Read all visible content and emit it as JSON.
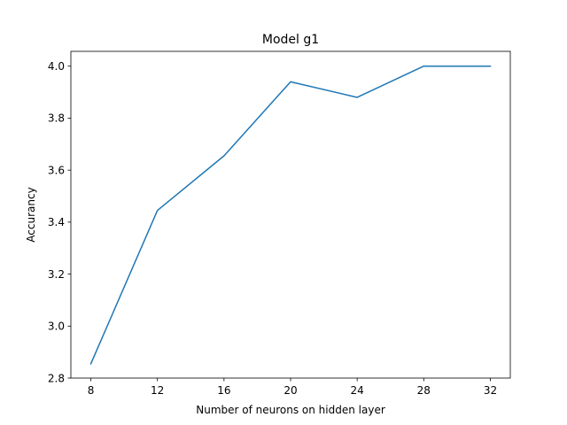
{
  "chart_data": {
    "type": "line",
    "title": "Model g1",
    "xlabel": "Number of neurons on hidden layer",
    "ylabel": "Accurancy",
    "x": [
      8,
      12,
      16,
      20,
      24,
      28,
      32
    ],
    "series": [
      {
        "values": [
          2.855,
          3.445,
          3.655,
          3.94,
          3.88,
          4.0,
          4.0
        ],
        "color": "#1f77b4"
      }
    ],
    "xlim": [
      6.8,
      33.2
    ],
    "ylim": [
      2.8,
      4.057
    ],
    "xticks": [
      8,
      12,
      16,
      20,
      24,
      28,
      32
    ],
    "xtick_labels": [
      "8",
      "12",
      "16",
      "20",
      "24",
      "28",
      "32"
    ],
    "yticks": [
      2.8,
      3.0,
      3.2,
      3.4,
      3.6,
      3.8,
      4.0
    ],
    "ytick_labels": [
      "2.8",
      "3.0",
      "3.2",
      "3.4",
      "3.6",
      "3.8",
      "4.0"
    ],
    "grid": false,
    "legend": "none"
  }
}
